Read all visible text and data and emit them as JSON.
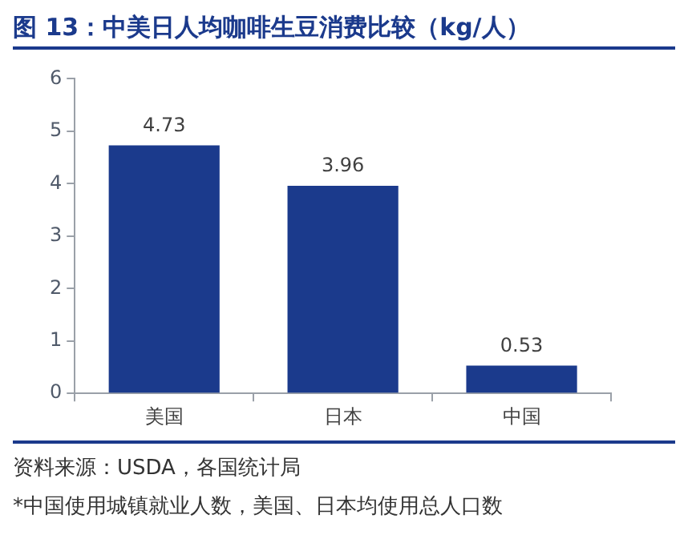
{
  "chart_data": {
    "type": "bar",
    "title": "图 13：中美日人均咖啡生豆消费比较（kg/人）",
    "categories": [
      "美国",
      "日本",
      "中国"
    ],
    "values": [
      4.73,
      3.96,
      0.53
    ],
    "color": "#1b3a8c",
    "ylim": [
      0,
      6
    ],
    "yticks": [
      0,
      1,
      2,
      3,
      4,
      5,
      6
    ],
    "grid": false,
    "data_labels": true,
    "annotations": [
      "资料来源：USDA，各国统计局",
      "*中国使用城镇就业人数，美国、日本均使用总人口数"
    ]
  }
}
